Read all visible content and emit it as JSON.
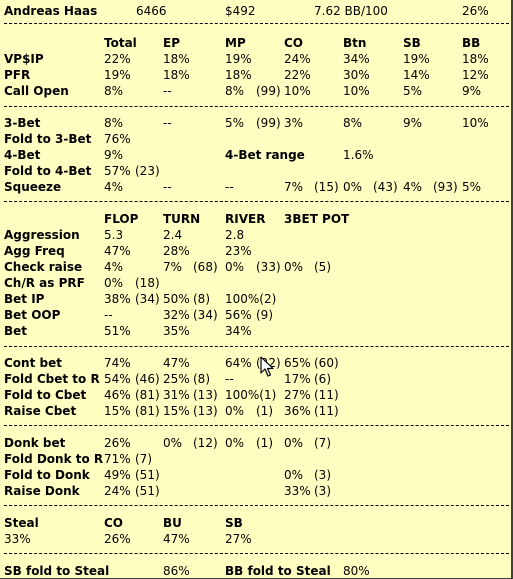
{
  "header": [
    "Andreas Haas",
    "6466",
    "$492",
    "7.62 BB/100",
    "26%"
  ],
  "sections": [
    [
      [
        "",
        "Total",
        "EP",
        "MP",
        "CO",
        "Btn",
        "SB",
        "BB"
      ],
      [
        "VP$IP",
        "22%",
        "18%",
        "19%",
        "24%",
        "34%",
        "19%",
        "18%"
      ],
      [
        "PFR",
        "19%",
        "18%",
        "18%",
        "22%",
        "30%",
        "14%",
        "12%"
      ],
      [
        "Call Open",
        "8%",
        "--",
        "8%",
        "(99)",
        "10%",
        "10%",
        "5%",
        "9%"
      ]
    ],
    [
      [
        "3-Bet",
        "8%",
        "--",
        "5%",
        "(99)",
        "3%",
        "8%",
        "9%",
        "10%"
      ],
      [
        "Fold to 3-Bet",
        "76%"
      ],
      [
        "4-Bet",
        "9%",
        "4-Bet range",
        "1.6%"
      ],
      [
        "Fold to 4-Bet",
        "57%",
        "(23)"
      ],
      [
        "Squeeze",
        "4%",
        "--",
        "--",
        "7%",
        "(15)",
        "0%",
        "(43)",
        "4%",
        "(93)",
        "5%"
      ]
    ],
    [
      [
        "",
        "FLOP",
        "TURN",
        "RIVER",
        "3BET POT"
      ],
      [
        "Aggression",
        "5.3",
        "2.4",
        "2.8"
      ],
      [
        "Agg Freq",
        "47%",
        "28%",
        "23%"
      ],
      [
        "Check raise",
        "4%",
        "7%",
        "(68)",
        "0%",
        "(33)",
        "0%",
        "(5)"
      ],
      [
        "Ch/R as PRF",
        "0%",
        "(18)"
      ],
      [
        "Bet IP",
        "38%",
        "(34)",
        "50%",
        "(8)",
        "100%(2)"
      ],
      [
        "Bet OOP",
        "--",
        "32%",
        "(34)",
        "56%",
        "(9)"
      ],
      [
        "Bet",
        "51%",
        "35%",
        "34%"
      ]
    ],
    [
      [
        "Cont bet",
        "74%",
        "47%",
        "64%",
        "(22)",
        "65%",
        "(60)"
      ],
      [
        "Fold Cbet to R",
        "54%",
        "(46)",
        "25%",
        "(8)",
        "--",
        "17%",
        "(6)"
      ],
      [
        "Fold to Cbet",
        "46%",
        "(81)",
        "31%",
        "(13)",
        "100%(1)",
        "27%",
        "(11)"
      ],
      [
        "Raise Cbet",
        "15%",
        "(81)",
        "15%",
        "(13)",
        "0%",
        "(1)",
        "36%",
        "(11)"
      ]
    ],
    [
      [
        "Donk bet",
        "26%",
        "0%",
        "(12)",
        "0%",
        "(1)",
        "0%",
        "(7)"
      ],
      [
        "Fold Donk to R",
        "71%",
        "(7)"
      ],
      [
        "Fold to Donk",
        "49%",
        "(51)",
        "0%",
        "(3)"
      ],
      [
        "Raise Donk",
        "24%",
        "(51)",
        "33%",
        "(3)"
      ]
    ],
    [
      [
        "Steal",
        "CO",
        "BU",
        "SB"
      ],
      [
        "33%",
        "26%",
        "47%",
        "27%"
      ]
    ],
    [
      [
        "SB fold to Steal",
        "86%",
        "BB fold to Steal",
        "80%"
      ]
    ]
  ]
}
